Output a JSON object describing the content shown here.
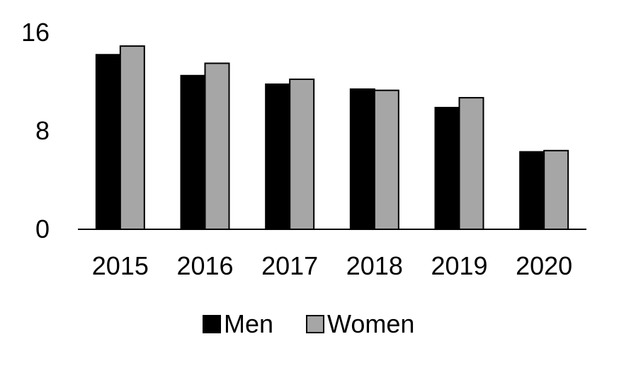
{
  "chart_data": {
    "type": "bar",
    "title": "",
    "xlabel": "",
    "ylabel": "",
    "categories": [
      "2015",
      "2016",
      "2017",
      "2018",
      "2019",
      "2020"
    ],
    "series": [
      {
        "name": "Men",
        "values": [
          14.2,
          12.5,
          11.8,
          11.4,
          9.9,
          6.3
        ],
        "color": "#000000"
      },
      {
        "name": "Women",
        "values": [
          14.9,
          13.5,
          12.2,
          11.3,
          10.7,
          6.4
        ],
        "color": "#a6a6a6"
      }
    ],
    "ylim": [
      0,
      16
    ],
    "yticks": [
      "0",
      "8",
      "16"
    ],
    "grid": false,
    "legend_position": "bottom"
  }
}
